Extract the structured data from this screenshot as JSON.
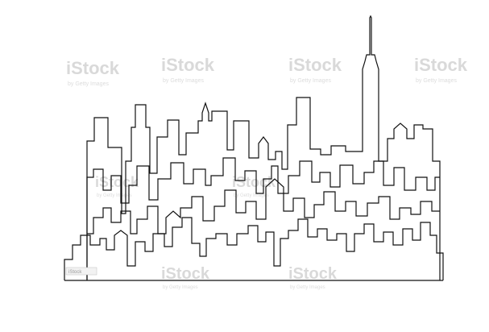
{
  "image": {
    "subject": "line drawing of a city skyline",
    "line_color": "#111111",
    "background_color": "#ffffff",
    "watermark_color": "#d9d9d9"
  },
  "watermarks": [
    {
      "label": "iStock",
      "sub": "by Getty Images"
    },
    {
      "label": "iStock",
      "sub": "by Getty Images"
    },
    {
      "label": "iStock",
      "sub": "by Getty Images"
    },
    {
      "label": "iStock",
      "sub": "by Getty Images"
    },
    {
      "label": "iStock",
      "sub": "by Getty Images"
    },
    {
      "label": "iStock",
      "sub": "by Getty Images"
    },
    {
      "label": "iStock",
      "sub": "by Getty Images"
    },
    {
      "label": "iStock",
      "sub": "by Getty Images"
    }
  ],
  "credit_tag": "iStock"
}
